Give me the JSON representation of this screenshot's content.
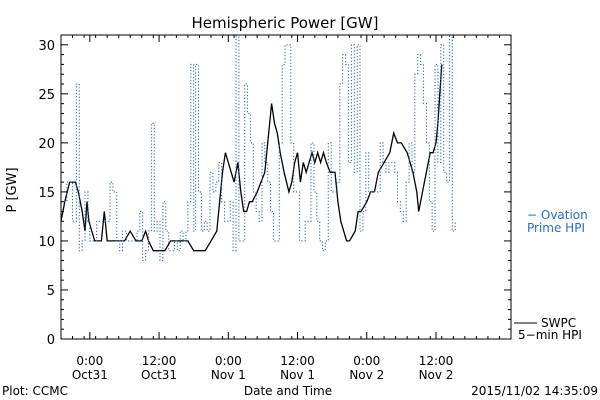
{
  "chart_data": {
    "type": "line",
    "title": "Hemispheric Power [GW]",
    "ylabel": "P [GW]",
    "xlabel": "Date and Time",
    "ylim": [
      0,
      31
    ],
    "yticks": [
      0,
      5,
      10,
      15,
      20,
      25,
      30
    ],
    "xlim": [
      "2015-10-30T19:00",
      "2015-11-03T01:00"
    ],
    "xticks": [
      {
        "t": "2015-10-31T00:00",
        "line1": "0:00",
        "line2": "Oct31"
      },
      {
        "t": "2015-10-31T12:00",
        "line1": "12:00",
        "line2": "Oct31"
      },
      {
        "t": "2015-11-01T00:00",
        "line1": "0:00",
        "line2": "Nov 1"
      },
      {
        "t": "2015-11-01T12:00",
        "line1": "12:00",
        "line2": "Nov 1"
      },
      {
        "t": "2015-11-02T00:00",
        "line1": "0:00",
        "line2": "Nov 2"
      },
      {
        "t": "2015-11-02T12:00",
        "line1": "12:00",
        "line2": "Nov 2"
      }
    ],
    "grid": false,
    "series": [
      {
        "name": "SWPC 5-min HPI",
        "label_lines": [
          "SWPC",
          "5−min HPI"
        ],
        "color": "#000000",
        "style": "solid",
        "points": [
          [
            "2015-10-30T19:00",
            12
          ],
          [
            "2015-10-30T19:40",
            14
          ],
          [
            "2015-10-30T20:30",
            16
          ],
          [
            "2015-10-30T21:30",
            16
          ],
          [
            "2015-10-30T22:00",
            15
          ],
          [
            "2015-10-30T22:40",
            13
          ],
          [
            "2015-10-30T23:10",
            11
          ],
          [
            "2015-10-30T23:30",
            14
          ],
          [
            "2015-10-30T23:50",
            12
          ],
          [
            "2015-10-31T00:20",
            11
          ],
          [
            "2015-10-31T00:50",
            10
          ],
          [
            "2015-10-31T01:30",
            10
          ],
          [
            "2015-10-31T02:00",
            10
          ],
          [
            "2015-10-31T02:30",
            13
          ],
          [
            "2015-10-31T03:00",
            10
          ],
          [
            "2015-10-31T03:30",
            10
          ],
          [
            "2015-10-31T04:20",
            10
          ],
          [
            "2015-10-31T05:00",
            10
          ],
          [
            "2015-10-31T06:00",
            10
          ],
          [
            "2015-10-31T07:00",
            11
          ],
          [
            "2015-10-31T08:00",
            10
          ],
          [
            "2015-10-31T09:00",
            10
          ],
          [
            "2015-10-31T09:40",
            11
          ],
          [
            "2015-10-31T10:10",
            10
          ],
          [
            "2015-10-31T11:00",
            9
          ],
          [
            "2015-10-31T12:00",
            9
          ],
          [
            "2015-10-31T13:00",
            9
          ],
          [
            "2015-10-31T14:00",
            10
          ],
          [
            "2015-10-31T14:50",
            10
          ],
          [
            "2015-10-31T16:00",
            10
          ],
          [
            "2015-10-31T17:00",
            10
          ],
          [
            "2015-10-31T18:00",
            9
          ],
          [
            "2015-10-31T19:00",
            9
          ],
          [
            "2015-10-31T20:00",
            9
          ],
          [
            "2015-10-31T21:00",
            10
          ],
          [
            "2015-10-31T22:00",
            11
          ],
          [
            "2015-10-31T22:20",
            13
          ],
          [
            "2015-10-31T22:40",
            15
          ],
          [
            "2015-10-31T23:00",
            17
          ],
          [
            "2015-10-31T23:30",
            19
          ],
          [
            "2015-11-01T00:00",
            18
          ],
          [
            "2015-11-01T00:30",
            17
          ],
          [
            "2015-11-01T01:00",
            16
          ],
          [
            "2015-11-01T01:40",
            18
          ],
          [
            "2015-11-01T02:10",
            15
          ],
          [
            "2015-11-01T02:40",
            13
          ],
          [
            "2015-11-01T03:10",
            13
          ],
          [
            "2015-11-01T03:40",
            14
          ],
          [
            "2015-11-01T04:10",
            14
          ],
          [
            "2015-11-01T05:00",
            15
          ],
          [
            "2015-11-01T05:40",
            16
          ],
          [
            "2015-11-01T06:20",
            17
          ],
          [
            "2015-11-01T07:00",
            21
          ],
          [
            "2015-11-01T07:30",
            24
          ],
          [
            "2015-11-01T08:00",
            22
          ],
          [
            "2015-11-01T08:30",
            21
          ],
          [
            "2015-11-01T09:00",
            19
          ],
          [
            "2015-11-01T09:40",
            17
          ],
          [
            "2015-11-01T10:30",
            15
          ],
          [
            "2015-11-01T11:00",
            16
          ],
          [
            "2015-11-01T11:30",
            18
          ],
          [
            "2015-11-01T12:00",
            19
          ],
          [
            "2015-11-01T12:30",
            16
          ],
          [
            "2015-11-01T13:00",
            18
          ],
          [
            "2015-11-01T13:30",
            17
          ],
          [
            "2015-11-01T14:00",
            18
          ],
          [
            "2015-11-01T14:30",
            19
          ],
          [
            "2015-11-01T15:00",
            18
          ],
          [
            "2015-11-01T15:30",
            19
          ],
          [
            "2015-11-01T16:00",
            18
          ],
          [
            "2015-11-01T16:30",
            19
          ],
          [
            "2015-11-01T17:00",
            18
          ],
          [
            "2015-11-01T17:40",
            17
          ],
          [
            "2015-11-01T18:30",
            17
          ],
          [
            "2015-11-01T19:00",
            14
          ],
          [
            "2015-11-01T19:30",
            12
          ],
          [
            "2015-11-01T20:00",
            11
          ],
          [
            "2015-11-01T20:30",
            10
          ],
          [
            "2015-11-01T21:00",
            10
          ],
          [
            "2015-11-01T22:00",
            11
          ],
          [
            "2015-11-01T22:30",
            13
          ],
          [
            "2015-11-01T23:00",
            13
          ],
          [
            "2015-11-02T00:00",
            14
          ],
          [
            "2015-11-02T00:40",
            15
          ],
          [
            "2015-11-02T01:20",
            15
          ],
          [
            "2015-11-02T02:00",
            17
          ],
          [
            "2015-11-02T03:00",
            18
          ],
          [
            "2015-11-02T04:00",
            19
          ],
          [
            "2015-11-02T04:40",
            21
          ],
          [
            "2015-11-02T05:20",
            20
          ],
          [
            "2015-11-02T06:00",
            20
          ],
          [
            "2015-11-02T07:00",
            19
          ],
          [
            "2015-11-02T08:00",
            17
          ],
          [
            "2015-11-02T08:40",
            15
          ],
          [
            "2015-11-02T09:00",
            13
          ],
          [
            "2015-11-02T09:40",
            15
          ],
          [
            "2015-11-02T10:20",
            17
          ],
          [
            "2015-11-02T11:00",
            19
          ],
          [
            "2015-11-02T11:30",
            19
          ],
          [
            "2015-11-02T12:00",
            20
          ],
          [
            "2015-11-02T12:20",
            22
          ],
          [
            "2015-11-02T12:40",
            25
          ],
          [
            "2015-11-02T13:00",
            28
          ]
        ]
      },
      {
        "name": "Ovation Prime HPI",
        "label_lines": [
          "− Ovation",
          "Prime HPI"
        ],
        "color": "#2a6ebf",
        "style": "dotted-step",
        "points": [
          [
            "2015-10-30T19:00",
            14
          ],
          [
            "2015-10-30T20:00",
            16
          ],
          [
            "2015-10-30T21:00",
            12
          ],
          [
            "2015-10-30T21:40",
            26
          ],
          [
            "2015-10-30T22:10",
            9
          ],
          [
            "2015-10-30T22:40",
            10
          ],
          [
            "2015-10-30T23:10",
            15
          ],
          [
            "2015-10-30T23:40",
            12
          ],
          [
            "2015-10-31T00:00",
            10
          ],
          [
            "2015-10-31T00:40",
            10
          ],
          [
            "2015-10-31T01:10",
            12
          ],
          [
            "2015-10-31T02:00",
            12
          ],
          [
            "2015-10-31T02:30",
            12
          ],
          [
            "2015-10-31T03:00",
            12
          ],
          [
            "2015-10-31T03:30",
            16
          ],
          [
            "2015-10-31T04:00",
            15
          ],
          [
            "2015-10-31T04:40",
            10
          ],
          [
            "2015-10-31T05:10",
            9
          ],
          [
            "2015-10-31T05:40",
            11
          ],
          [
            "2015-10-31T06:20",
            10
          ],
          [
            "2015-10-31T07:00",
            10
          ],
          [
            "2015-10-31T07:30",
            10
          ],
          [
            "2015-10-31T08:10",
            11
          ],
          [
            "2015-10-31T08:40",
            13
          ],
          [
            "2015-10-31T09:10",
            8
          ],
          [
            "2015-10-31T09:40",
            9
          ],
          [
            "2015-10-31T10:10",
            11
          ],
          [
            "2015-10-31T10:40",
            22
          ],
          [
            "2015-10-31T11:10",
            11
          ],
          [
            "2015-10-31T11:40",
            12
          ],
          [
            "2015-10-31T12:10",
            8
          ],
          [
            "2015-10-31T12:40",
            14
          ],
          [
            "2015-10-31T13:10",
            11
          ],
          [
            "2015-10-31T13:40",
            9
          ],
          [
            "2015-10-31T14:10",
            9
          ],
          [
            "2015-10-31T14:40",
            10
          ],
          [
            "2015-10-31T15:10",
            9
          ],
          [
            "2015-10-31T15:40",
            11
          ],
          [
            "2015-10-31T16:10",
            10
          ],
          [
            "2015-10-31T16:40",
            11
          ],
          [
            "2015-10-31T17:00",
            14
          ],
          [
            "2015-10-31T17:30",
            28
          ],
          [
            "2015-10-31T18:00",
            11
          ],
          [
            "2015-10-31T18:20",
            28
          ],
          [
            "2015-10-31T18:50",
            15
          ],
          [
            "2015-10-31T19:20",
            11
          ],
          [
            "2015-10-31T19:50",
            12
          ],
          [
            "2015-10-31T20:20",
            11
          ],
          [
            "2015-10-31T20:50",
            17
          ],
          [
            "2015-10-31T21:20",
            15
          ],
          [
            "2015-10-31T21:50",
            16
          ],
          [
            "2015-10-31T22:20",
            18
          ],
          [
            "2015-10-31T22:50",
            14
          ],
          [
            "2015-10-31T23:20",
            12
          ],
          [
            "2015-10-31T23:50",
            12
          ],
          [
            "2015-11-01T00:20",
            14
          ],
          [
            "2015-11-01T00:50",
            9
          ],
          [
            "2015-11-01T01:20",
            31
          ],
          [
            "2015-11-01T01:50",
            10
          ],
          [
            "2015-11-01T02:20",
            10
          ],
          [
            "2015-11-01T02:50",
            26
          ],
          [
            "2015-11-01T03:20",
            23
          ],
          [
            "2015-11-01T03:50",
            20
          ],
          [
            "2015-11-01T04:20",
            15
          ],
          [
            "2015-11-01T04:50",
            13
          ],
          [
            "2015-11-01T05:20",
            12
          ],
          [
            "2015-11-01T05:50",
            20
          ],
          [
            "2015-11-01T06:20",
            18
          ],
          [
            "2015-11-01T06:50",
            16
          ],
          [
            "2015-11-01T07:20",
            13
          ],
          [
            "2015-11-01T07:50",
            10
          ],
          [
            "2015-11-01T08:20",
            10
          ],
          [
            "2015-11-01T08:50",
            20
          ],
          [
            "2015-11-01T09:20",
            28
          ],
          [
            "2015-11-01T09:50",
            30
          ],
          [
            "2015-11-01T10:20",
            30
          ],
          [
            "2015-11-01T10:50",
            20
          ],
          [
            "2015-11-01T11:20",
            15
          ],
          [
            "2015-11-01T11:50",
            15
          ],
          [
            "2015-11-01T12:20",
            10
          ],
          [
            "2015-11-01T12:50",
            10
          ],
          [
            "2015-11-01T13:20",
            12
          ],
          [
            "2015-11-01T13:50",
            12
          ],
          [
            "2015-11-01T14:20",
            20
          ],
          [
            "2015-11-01T14:50",
            15
          ],
          [
            "2015-11-01T15:20",
            12
          ],
          [
            "2015-11-01T15:50",
            10
          ],
          [
            "2015-11-01T16:20",
            9
          ],
          [
            "2015-11-01T16:50",
            10
          ],
          [
            "2015-11-01T17:20",
            20
          ],
          [
            "2015-11-01T17:50",
            15
          ],
          [
            "2015-11-01T18:20",
            15
          ],
          [
            "2015-11-01T18:50",
            16
          ],
          [
            "2015-11-01T19:20",
            26
          ],
          [
            "2015-11-01T19:50",
            29
          ],
          [
            "2015-11-01T20:20",
            28
          ],
          [
            "2015-11-01T20:50",
            18
          ],
          [
            "2015-11-01T21:20",
            30
          ],
          [
            "2015-11-01T21:50",
            17
          ],
          [
            "2015-11-01T22:20",
            30
          ],
          [
            "2015-11-01T22:50",
            11
          ],
          [
            "2015-11-01T23:20",
            13
          ],
          [
            "2015-11-01T23:50",
            19
          ],
          [
            "2015-11-02T00:20",
            15
          ],
          [
            "2015-11-02T00:50",
            15
          ],
          [
            "2015-11-02T01:20",
            15
          ],
          [
            "2015-11-02T01:50",
            15
          ],
          [
            "2015-11-02T02:20",
            20
          ],
          [
            "2015-11-02T02:50",
            18
          ],
          [
            "2015-11-02T03:20",
            17
          ],
          [
            "2015-11-02T03:50",
            18
          ],
          [
            "2015-11-02T04:20",
            18
          ],
          [
            "2015-11-02T04:50",
            17
          ],
          [
            "2015-11-02T05:20",
            14
          ],
          [
            "2015-11-02T05:50",
            13
          ],
          [
            "2015-11-02T06:20",
            12
          ],
          [
            "2015-11-02T06:50",
            16
          ],
          [
            "2015-11-02T07:20",
            20
          ],
          [
            "2015-11-02T07:50",
            17
          ],
          [
            "2015-11-02T08:20",
            27
          ],
          [
            "2015-11-02T08:50",
            29
          ],
          [
            "2015-11-02T09:20",
            28
          ],
          [
            "2015-11-02T09:50",
            24
          ],
          [
            "2015-11-02T10:20",
            20
          ],
          [
            "2015-11-02T10:50",
            14
          ],
          [
            "2015-11-02T11:20",
            11
          ],
          [
            "2015-11-02T11:50",
            28
          ],
          [
            "2015-11-02T12:20",
            18
          ],
          [
            "2015-11-02T12:50",
            30
          ],
          [
            "2015-11-02T13:20",
            17
          ],
          [
            "2015-11-02T13:50",
            16
          ],
          [
            "2015-11-02T14:20",
            31
          ],
          [
            "2015-11-02T14:50",
            11
          ],
          [
            "2015-11-02T15:20",
            12
          ]
        ]
      }
    ]
  },
  "footer": {
    "plot_credit": "Plot: CCMC",
    "timestamp": "2015/11/02 14:35:09"
  }
}
